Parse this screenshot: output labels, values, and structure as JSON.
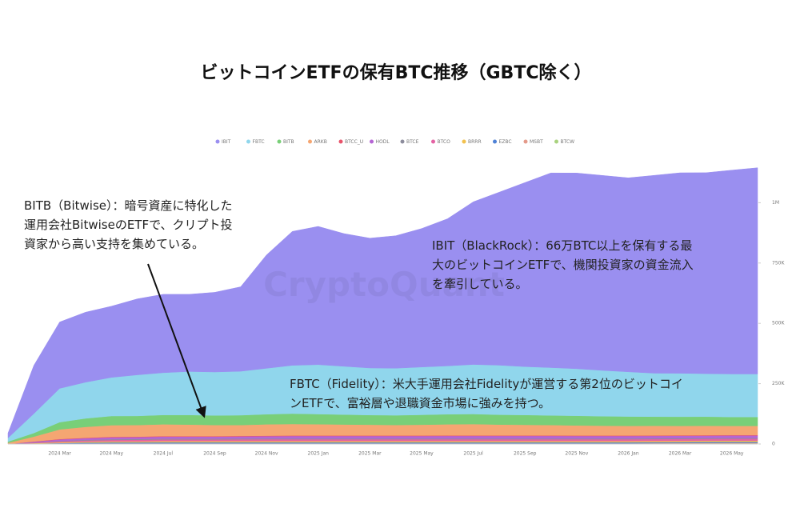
{
  "chart_data": {
    "type": "stacked-area",
    "title": "ビットコインETFの保有BTC推移（GBTC除く）",
    "watermark": "CryptoQuant",
    "categories": [
      null,
      null,
      "2024 Mar",
      null,
      "2024 May",
      null,
      "2024 Jul",
      null,
      "2024 Sep",
      null,
      "2024 Nov",
      null,
      "2025 Jan",
      null,
      "2025 Mar",
      null,
      "2025 May",
      null,
      "2025 Jul",
      null,
      "2025 Sep",
      null,
      "2025 Nov",
      null,
      "2026 Jan",
      null,
      "2026 Mar",
      null,
      "2026 May",
      null
    ],
    "ylim": [
      0,
      1250000
    ],
    "yticks": [
      0,
      {
        "value": 250000,
        "label": "250K"
      },
      {
        "value": 500000,
        "label": "500K"
      },
      {
        "value": 750000,
        "label": "750K"
      },
      {
        "value": 1000000,
        "label": "1M"
      }
    ],
    "series": [
      {
        "name": "IBIT",
        "color": "#9a8ff0",
        "values": [
          20000,
          200000,
          275000,
          290000,
          295000,
          315000,
          325000,
          320000,
          330000,
          350000,
          470000,
          555000,
          573000,
          550000,
          538000,
          549000,
          574000,
          610000,
          674000,
          717000,
          763000,
          807000,
          811000,
          808000,
          804000,
          820000,
          831000,
          833000,
          845000,
          855000
        ]
      },
      {
        "name": "FBTC",
        "color": "#90d6ec",
        "values": [
          15000,
          80000,
          140000,
          150000,
          160000,
          170000,
          175000,
          180000,
          180000,
          182000,
          190000,
          200000,
          205000,
          200000,
          195000,
          195000,
          198000,
          200000,
          205000,
          205000,
          200000,
          198000,
          195000,
          190000,
          185000,
          180000,
          180000,
          178000,
          178000,
          178000
        ]
      },
      {
        "name": "BITB",
        "color": "#79cf78",
        "values": [
          5000,
          15000,
          30000,
          35000,
          38000,
          38000,
          39000,
          40000,
          40000,
          41000,
          42000,
          43000,
          42000,
          41000,
          40000,
          40000,
          41000,
          42000,
          42000,
          41000,
          41000,
          40000,
          40000,
          39000,
          39000,
          38000,
          38000,
          38000,
          37000,
          37000
        ]
      },
      {
        "name": "ARKB",
        "color": "#f5a672",
        "values": [
          5000,
          20000,
          40000,
          45000,
          48000,
          48000,
          49000,
          48000,
          46000,
          45000,
          47000,
          48000,
          47000,
          46000,
          45000,
          44000,
          45000,
          46000,
          47000,
          45000,
          44000,
          43000,
          42000,
          41000,
          40000,
          40000,
          39000,
          39000,
          38000,
          38000
        ]
      },
      {
        "name": "BTCC_U",
        "color": "#e8536a",
        "values": [
          0,
          1000,
          1500,
          2000,
          2000,
          2000,
          2000,
          2000,
          2000,
          2000,
          2000,
          2000,
          2000,
          2000,
          2000,
          2000,
          2000,
          2000,
          2000,
          2000,
          2000,
          2000,
          2000,
          2000,
          2000,
          2000,
          2000,
          2000,
          2000,
          2000
        ]
      },
      {
        "name": "HODL",
        "color": "#b565d4",
        "values": [
          0,
          3000,
          6000,
          7000,
          8000,
          8000,
          8500,
          8500,
          8500,
          9000,
          9500,
          10000,
          10000,
          10000,
          10000,
          10000,
          10000,
          10500,
          10500,
          10500,
          10500,
          10500,
          10000,
          10000,
          10000,
          10000,
          10000,
          10000,
          10000,
          10000
        ]
      },
      {
        "name": "BTCE",
        "color": "#8c8c9c",
        "values": [
          0,
          1000,
          2000,
          2500,
          3000,
          3000,
          3000,
          3000,
          3000,
          3000,
          3000,
          3000,
          3000,
          3000,
          3000,
          3000,
          3000,
          3000,
          3000,
          3000,
          3000,
          3000,
          3000,
          3000,
          3000,
          3000,
          3000,
          3000,
          3000,
          3000
        ]
      },
      {
        "name": "BTCO",
        "color": "#e463a4",
        "values": [
          0,
          2000,
          4000,
          5000,
          6000,
          6500,
          7000,
          7000,
          7000,
          7500,
          8000,
          8000,
          8000,
          8000,
          8000,
          8000,
          8000,
          8000,
          8000,
          8000,
          8000,
          8000,
          8000,
          8000,
          8000,
          8000,
          8000,
          8000,
          8000,
          8000
        ]
      },
      {
        "name": "BRRR",
        "color": "#f2c14e",
        "values": [
          0,
          1500,
          3000,
          4000,
          4500,
          4500,
          5000,
          5000,
          5000,
          5000,
          5000,
          5000,
          5000,
          5000,
          5000,
          5000,
          5000,
          5000,
          5000,
          5000,
          5000,
          5000,
          5000,
          5000,
          5000,
          5000,
          5000,
          5000,
          5000,
          5000
        ]
      },
      {
        "name": "EZBC",
        "color": "#4f82d6",
        "values": [
          0,
          1000,
          2000,
          3000,
          3500,
          3500,
          4000,
          4000,
          4000,
          4000,
          4000,
          4000,
          4000,
          4000,
          4000,
          4000,
          4000,
          4000,
          4000,
          4000,
          4000,
          4000,
          4000,
          4000,
          4000,
          4000,
          4000,
          4000,
          4000,
          4000
        ]
      },
      {
        "name": "MSBT",
        "color": "#e49a8a",
        "values": [
          0,
          0,
          0,
          0,
          0,
          0,
          0,
          0,
          0,
          0,
          0,
          0,
          0,
          0,
          0,
          0,
          0,
          0,
          0,
          0,
          0,
          0,
          0,
          0,
          0,
          500,
          1000,
          1500,
          2000,
          2000
        ]
      },
      {
        "name": "BTCW",
        "color": "#a9d27e",
        "values": [
          0,
          1000,
          2000,
          2500,
          3000,
          3000,
          3000,
          3000,
          3000,
          3000,
          3000,
          3000,
          3000,
          3000,
          3000,
          3000,
          3000,
          3000,
          3000,
          3000,
          3000,
          3000,
          3000,
          3000,
          3000,
          3000,
          3000,
          3000,
          3000,
          3000
        ]
      }
    ],
    "annotations": [
      [
        "BITB（Bitwise）：暗号資産に特化した",
        "運用会社BitwiseのETFで、クリプト投",
        "資家から高い支持を集めている。"
      ],
      [
        "IBIT（BlackRock）：66万BTC以上を保有する最",
        "大のビットコインETFで、機関投資家の資金流入",
        "を牽引している。"
      ],
      [
        "FBTC（Fidelity）：米大手運用会社Fidelityが運営する第2位のビットコイ",
        "ンETFで、富裕層や退職資金市場に強みを持つ。"
      ]
    ]
  }
}
